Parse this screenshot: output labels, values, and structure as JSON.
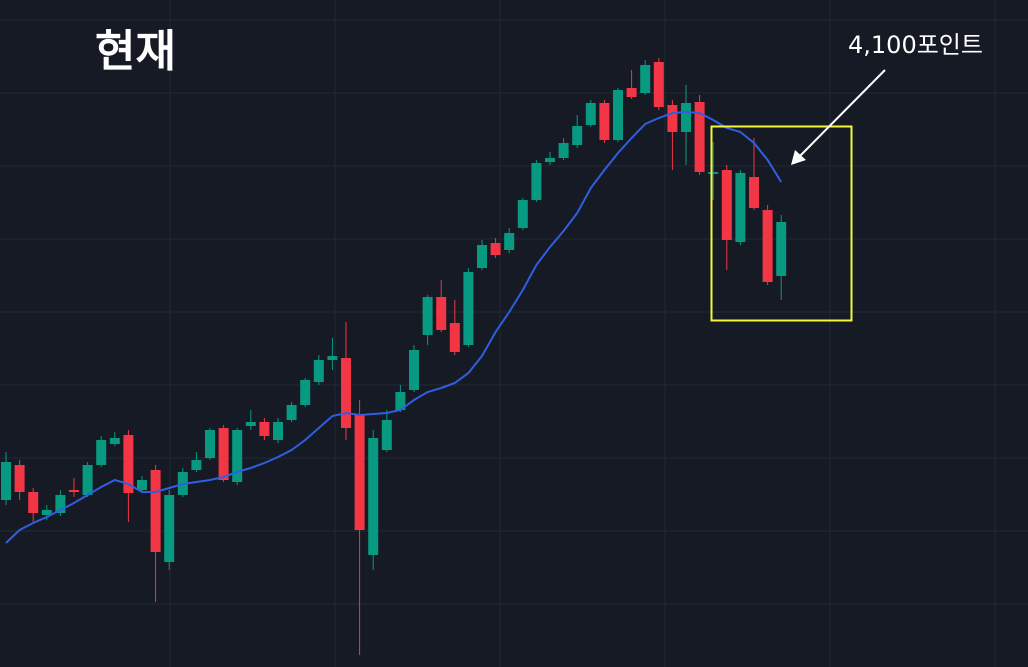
{
  "chart_data": {
    "type": "candlestick",
    "title": "현재",
    "annotation": "4,100포인트",
    "categories": [
      null,
      null,
      null,
      null,
      null,
      null,
      null,
      null,
      null,
      null,
      null,
      null,
      null,
      null,
      null,
      null,
      null,
      null,
      null,
      null,
      null,
      null,
      null,
      null,
      null,
      null,
      null,
      null,
      null,
      null,
      null,
      null,
      null,
      null,
      null,
      null,
      null,
      null,
      null,
      null,
      null,
      null,
      null,
      null,
      null,
      null,
      null,
      null,
      null,
      null,
      null,
      null,
      null,
      null,
      null,
      null,
      null,
      null
    ],
    "open": [
      167,
      202,
      175,
      152,
      154,
      177,
      172,
      202,
      223,
      232,
      177,
      197,
      105,
      172,
      197,
      209,
      239,
      185,
      241,
      245,
      227,
      247,
      262,
      285,
      307,
      309,
      252,
      112,
      217,
      257,
      277,
      332,
      370,
      344,
      322,
      399,
      424,
      417,
      439,
      467,
      505,
      509,
      522,
      542,
      564,
      527,
      579,
      574,
      605,
      562,
      535,
      565,
      493,
      497,
      425,
      490,
      457,
      391
    ],
    "high": [
      215,
      207,
      179,
      162,
      177,
      189,
      205,
      231,
      235,
      237,
      191,
      202,
      177,
      199,
      215,
      239,
      242,
      239,
      257,
      249,
      249,
      265,
      289,
      312,
      329,
      345,
      267,
      237,
      257,
      282,
      322,
      372,
      387,
      367,
      399,
      427,
      429,
      439,
      469,
      507,
      515,
      529,
      552,
      567,
      567,
      579,
      597,
      607,
      609,
      567,
      582,
      572,
      525,
      502,
      497,
      529,
      462,
      452
    ],
    "low": [
      162,
      167,
      145,
      147,
      151,
      170,
      170,
      200,
      221,
      145,
      175,
      65,
      97,
      170,
      195,
      207,
      185,
      182,
      237,
      227,
      224,
      245,
      260,
      282,
      297,
      227,
      12,
      97,
      215,
      255,
      275,
      322,
      335,
      312,
      320,
      397,
      409,
      414,
      437,
      465,
      502,
      507,
      519,
      540,
      524,
      525,
      568,
      572,
      557,
      497,
      502,
      492,
      467,
      397,
      422,
      457,
      382,
      367
    ],
    "close": [
      205,
      175,
      154,
      157,
      172,
      175,
      202,
      227,
      229,
      174,
      187,
      115,
      172,
      195,
      207,
      237,
      187,
      237,
      245,
      231,
      245,
      262,
      287,
      307,
      311,
      239,
      137,
      229,
      247,
      275,
      317,
      370,
      337,
      315,
      395,
      422,
      412,
      434,
      467,
      504,
      509,
      524,
      541,
      564,
      527,
      577,
      570,
      602,
      560,
      535,
      564,
      495,
      495,
      427,
      494,
      459,
      385,
      445
    ],
    "up_color": "#089981",
    "down_color": "#f23645",
    "ma": {
      "color": "#2f5fe0",
      "values": [
        124,
        137,
        144,
        150,
        157,
        164,
        172,
        180,
        187,
        183,
        175,
        175,
        179,
        183,
        185,
        187,
        190,
        195,
        199,
        204,
        210,
        217,
        227,
        239,
        251,
        254,
        252,
        253,
        254,
        257,
        267,
        275,
        279,
        284,
        294,
        311,
        335,
        355,
        377,
        402,
        420,
        436,
        454,
        479,
        497,
        514,
        529,
        543,
        549,
        554,
        555,
        554,
        547,
        539,
        535,
        524,
        507,
        485
      ]
    },
    "ylim": [
      0,
      667
    ]
  }
}
